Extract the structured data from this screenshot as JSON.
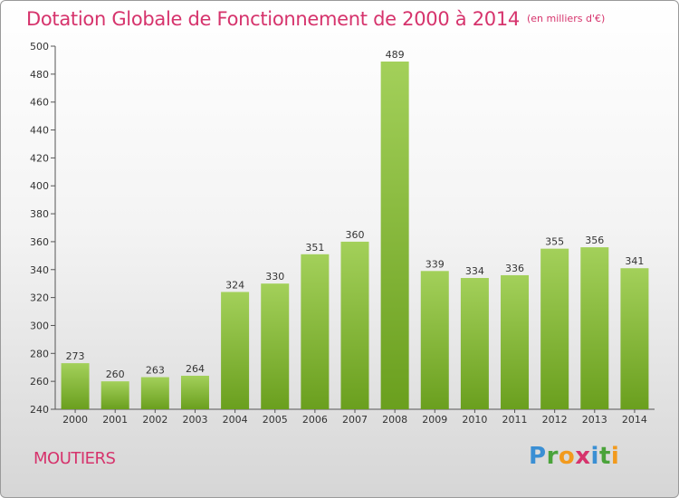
{
  "title": "Dotation Globale de Fonctionnement de 2000 à 2014",
  "subtitle": "(en milliers d'€)",
  "commune": "MOUTIERS",
  "brand": {
    "letters": [
      "P",
      "r",
      "o",
      "x",
      "i",
      "t",
      "i"
    ],
    "colors": [
      "#3a8fd4",
      "#4aa33a",
      "#f29a1d",
      "#d6336c",
      "#3a8fd4",
      "#4aa33a",
      "#f29a1d"
    ]
  },
  "colors": {
    "bar_top": "#a3d05a",
    "bar_bottom": "#6a9f1e",
    "title": "#d6336c"
  },
  "chart_data": {
    "type": "bar",
    "categories": [
      "2000",
      "2001",
      "2002",
      "2003",
      "2004",
      "2005",
      "2006",
      "2007",
      "2008",
      "2009",
      "2010",
      "2011",
      "2012",
      "2013",
      "2014"
    ],
    "values": [
      273,
      260,
      263,
      264,
      324,
      330,
      351,
      360,
      489,
      339,
      334,
      336,
      355,
      356,
      341
    ],
    "title": "Dotation Globale de Fonctionnement de 2000 à 2014",
    "subtitle": "(en milliers d'€)",
    "ylim": [
      240,
      500
    ],
    "yticks": [
      240,
      260,
      280,
      300,
      320,
      340,
      360,
      380,
      400,
      420,
      440,
      460,
      480,
      500
    ],
    "grid": false
  }
}
